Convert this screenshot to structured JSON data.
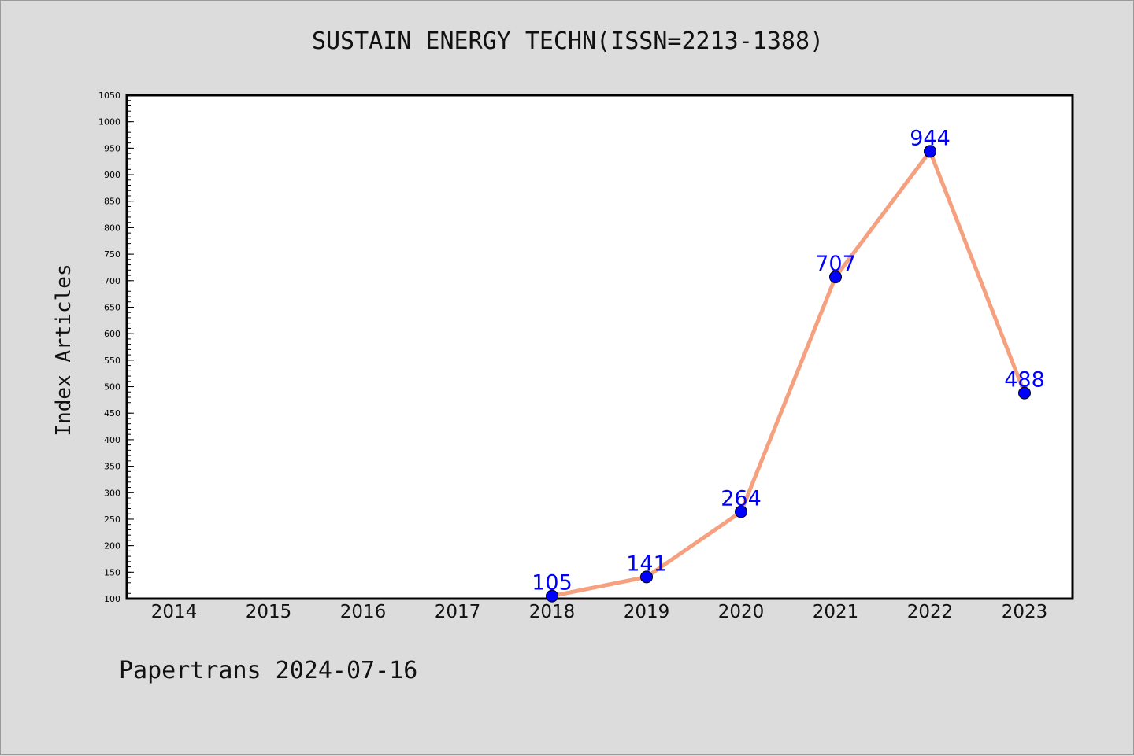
{
  "footer": {
    "text": "Papertrans 2024-07-16"
  },
  "colors": {
    "background": "#dcdcdc",
    "plot_area": "#ffffff",
    "line": "#f5a07e",
    "marker": "#0000ff",
    "data_label": "#0000ff",
    "axis": "#000000"
  },
  "chart_data": {
    "type": "line",
    "title": "SUSTAIN ENERGY TECHN(ISSN=2213-1388)",
    "ylabel": "Index Articles",
    "xlabel": "",
    "categories": [
      "2014",
      "2015",
      "2016",
      "2017",
      "2018",
      "2019",
      "2020",
      "2021",
      "2022",
      "2023"
    ],
    "series": [
      {
        "x": [
          "2018",
          "2019",
          "2020",
          "2021",
          "2022",
          "2023"
        ],
        "values": [
          105,
          141,
          264,
          707,
          944,
          488
        ]
      }
    ],
    "data_labels": [
      "105",
      "141",
      "264",
      "707",
      "944",
      "488"
    ],
    "ylim": [
      100,
      1050
    ],
    "yticks": [
      100,
      150,
      200,
      250,
      300,
      350,
      400,
      450,
      500,
      550,
      600,
      650,
      700,
      750,
      800,
      850,
      900,
      950,
      1000,
      1050
    ],
    "y_minor_step": 10,
    "grid": false,
    "legend": "none"
  }
}
